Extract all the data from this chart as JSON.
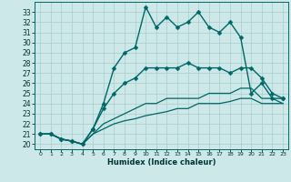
{
  "xlabel": "Humidex (Indice chaleur)",
  "background_color": "#cce8e8",
  "grid_color": "#aacccc",
  "line_color": "#006666",
  "xlim": [
    -0.5,
    23.5
  ],
  "ylim": [
    19.5,
    34.0
  ],
  "xtick_labels": [
    "0",
    "1",
    "2",
    "3",
    "4",
    "5",
    "6",
    "7",
    "8",
    "9",
    "10",
    "11",
    "12",
    "13",
    "14",
    "15",
    "16",
    "17",
    "18",
    "19",
    "20",
    "21",
    "22",
    "23"
  ],
  "ytick_labels": [
    "20",
    "21",
    "22",
    "23",
    "24",
    "25",
    "26",
    "27",
    "28",
    "29",
    "30",
    "31",
    "32",
    "33"
  ],
  "yticks": [
    20,
    21,
    22,
    23,
    24,
    25,
    26,
    27,
    28,
    29,
    30,
    31,
    32,
    33
  ],
  "xticks": [
    0,
    1,
    2,
    3,
    4,
    5,
    6,
    7,
    8,
    9,
    10,
    11,
    12,
    13,
    14,
    15,
    16,
    17,
    18,
    19,
    20,
    21,
    22,
    23
  ],
  "series": [
    {
      "x": [
        0,
        1,
        2,
        3,
        4,
        5,
        6,
        7,
        8,
        9,
        10,
        11,
        12,
        13,
        14,
        15,
        16,
        17,
        18,
        19,
        20,
        21,
        22,
        23
      ],
      "y": [
        21.0,
        21.0,
        20.5,
        20.3,
        20.0,
        21.5,
        24.0,
        27.5,
        29.0,
        29.5,
        33.5,
        31.5,
        32.5,
        31.5,
        32.0,
        33.0,
        31.5,
        31.0,
        32.0,
        30.5,
        25.0,
        26.0,
        24.5,
        24.5
      ],
      "marker": "D",
      "markersize": 2.5,
      "linewidth": 1.0
    },
    {
      "x": [
        0,
        1,
        2,
        3,
        4,
        5,
        6,
        7,
        8,
        9,
        10,
        11,
        12,
        13,
        14,
        15,
        16,
        17,
        18,
        19,
        20,
        21,
        22,
        23
      ],
      "y": [
        21.0,
        21.0,
        20.5,
        20.3,
        20.0,
        21.5,
        23.5,
        25.0,
        26.0,
        26.5,
        27.5,
        27.5,
        27.5,
        27.5,
        28.0,
        27.5,
        27.5,
        27.5,
        27.0,
        27.5,
        27.5,
        26.5,
        25.0,
        24.5
      ],
      "marker": "D",
      "markersize": 2.5,
      "linewidth": 1.0
    },
    {
      "x": [
        0,
        1,
        2,
        3,
        4,
        5,
        6,
        7,
        8,
        9,
        10,
        11,
        12,
        13,
        14,
        15,
        16,
        17,
        18,
        19,
        20,
        21,
        22,
        23
      ],
      "y": [
        21.0,
        21.0,
        20.5,
        20.3,
        20.0,
        21.0,
        22.0,
        22.5,
        23.0,
        23.5,
        24.0,
        24.0,
        24.5,
        24.5,
        24.5,
        24.5,
        25.0,
        25.0,
        25.0,
        25.5,
        25.5,
        24.5,
        24.5,
        24.0
      ],
      "marker": null,
      "markersize": 0,
      "linewidth": 0.9
    },
    {
      "x": [
        0,
        1,
        2,
        3,
        4,
        5,
        6,
        7,
        8,
        9,
        10,
        11,
        12,
        13,
        14,
        15,
        16,
        17,
        18,
        19,
        20,
        21,
        22,
        23
      ],
      "y": [
        21.0,
        21.0,
        20.5,
        20.3,
        20.0,
        21.0,
        21.5,
        22.0,
        22.3,
        22.5,
        22.8,
        23.0,
        23.2,
        23.5,
        23.5,
        24.0,
        24.0,
        24.0,
        24.2,
        24.5,
        24.5,
        24.0,
        24.0,
        24.0
      ],
      "marker": null,
      "markersize": 0,
      "linewidth": 0.9
    }
  ]
}
